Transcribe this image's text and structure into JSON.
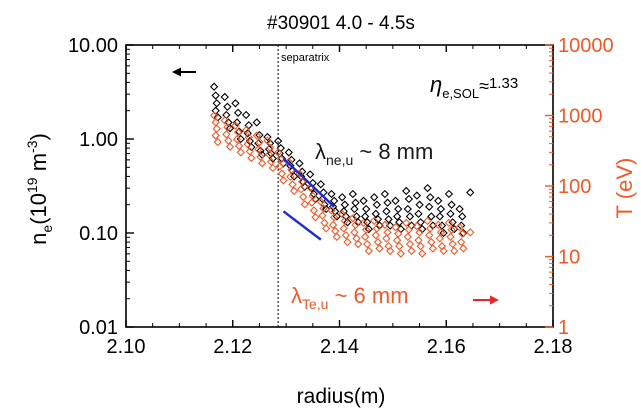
{
  "chart_data": {
    "type": "scatter",
    "title": "#30901 4.0 - 4.5s",
    "xlabel": "radius(m)",
    "ylabel_left": {
      "base": "n",
      "sub": "e",
      "unit_pre": "(10",
      "unit_sup": "19",
      "unit_mid": " m",
      "unit_sup2": "-3",
      "unit_post": ")"
    },
    "ylabel_right": "T (eV)",
    "xlim": [
      2.1,
      2.18
    ],
    "x_ticks": [
      "2.10",
      "2.12",
      "2.14",
      "2.16",
      "2.18"
    ],
    "x_tick_values": [
      2.1,
      2.12,
      2.14,
      2.16,
      2.18
    ],
    "ylim_left": [
      0.01,
      10
    ],
    "ylim_right": [
      1,
      10000
    ],
    "yscale": "log",
    "y_ticks_left": [
      "10.00",
      "1.00",
      "0.10",
      "0.01"
    ],
    "y_tick_values_left": [
      10,
      1,
      0.1,
      0.01
    ],
    "y_ticks_right": [
      "10000",
      "1000",
      "100",
      "10",
      "1"
    ],
    "y_tick_values_right": [
      10000,
      1000,
      100,
      10,
      1
    ],
    "colors": {
      "density": "#000000",
      "temperature": "#f05a28",
      "fit": "#1f2bd6"
    },
    "separatrix": {
      "x": 2.1285,
      "label": "separatrix"
    },
    "annotations": {
      "eta": {
        "symbol": "η",
        "sub": "e,SOL",
        "rel": "≈",
        "value": "1.33"
      },
      "lambda_ne": {
        "symbol": "λ",
        "sub": "ne,u",
        "text": " ~ 8 mm"
      },
      "lambda_te": {
        "symbol": "λ",
        "sub": "Te,u",
        "text": " ~ 6 mm"
      }
    },
    "fits": {
      "density": {
        "x": [
          2.1295,
          2.139
        ],
        "y": [
          0.62,
          0.19
        ]
      },
      "temperature": {
        "x": [
          2.1295,
          2.1365
        ],
        "y": [
          0.17,
          0.085
        ]
      }
    },
    "series": [
      {
        "axis": "left",
        "marker": "diamond",
        "color": "#000000",
        "points": [
          [
            2.1165,
            3.6
          ],
          [
            2.1168,
            2.9
          ],
          [
            2.117,
            2.4
          ],
          [
            2.1168,
            2.0
          ],
          [
            2.1172,
            1.7
          ],
          [
            2.1185,
            2.8
          ],
          [
            2.119,
            2.2
          ],
          [
            2.1188,
            1.8
          ],
          [
            2.1192,
            1.5
          ],
          [
            2.1195,
            1.3
          ],
          [
            2.1205,
            2.4
          ],
          [
            2.121,
            1.9
          ],
          [
            2.1208,
            1.5
          ],
          [
            2.1212,
            1.2
          ],
          [
            2.1215,
            1.0
          ],
          [
            2.1225,
            1.8
          ],
          [
            2.123,
            1.4
          ],
          [
            2.1228,
            1.15
          ],
          [
            2.1232,
            0.95
          ],
          [
            2.1235,
            0.82
          ],
          [
            2.1245,
            1.5
          ],
          [
            2.125,
            1.1
          ],
          [
            2.1248,
            0.9
          ],
          [
            2.1252,
            0.75
          ],
          [
            2.1255,
            0.68
          ],
          [
            2.1265,
            1.05
          ],
          [
            2.127,
            0.9
          ],
          [
            2.1268,
            0.78
          ],
          [
            2.1272,
            0.7
          ],
          [
            2.1275,
            0.62
          ],
          [
            2.1285,
            0.95
          ],
          [
            2.129,
            0.8
          ],
          [
            2.1288,
            0.7
          ],
          [
            2.1292,
            0.62
          ],
          [
            2.1295,
            0.55
          ],
          [
            2.1305,
            0.72
          ],
          [
            2.131,
            0.6
          ],
          [
            2.1308,
            0.52
          ],
          [
            2.1312,
            0.46
          ],
          [
            2.1315,
            0.4
          ],
          [
            2.1325,
            0.55
          ],
          [
            2.133,
            0.45
          ],
          [
            2.1328,
            0.4
          ],
          [
            2.1332,
            0.35
          ],
          [
            2.1335,
            0.31
          ],
          [
            2.1345,
            0.42
          ],
          [
            2.135,
            0.34
          ],
          [
            2.1348,
            0.3
          ],
          [
            2.1352,
            0.26
          ],
          [
            2.1355,
            0.23
          ],
          [
            2.1365,
            0.33
          ],
          [
            2.137,
            0.27
          ],
          [
            2.1368,
            0.23
          ],
          [
            2.1372,
            0.2
          ],
          [
            2.1375,
            0.18
          ],
          [
            2.1385,
            0.26
          ],
          [
            2.139,
            0.22
          ],
          [
            2.1388,
            0.19
          ],
          [
            2.1392,
            0.17
          ],
          [
            2.1395,
            0.15
          ],
          [
            2.1405,
            0.24
          ],
          [
            2.141,
            0.2
          ],
          [
            2.1408,
            0.17
          ],
          [
            2.1412,
            0.15
          ],
          [
            2.1415,
            0.13
          ],
          [
            2.1425,
            0.26
          ],
          [
            2.143,
            0.21
          ],
          [
            2.1428,
            0.18
          ],
          [
            2.1432,
            0.15
          ],
          [
            2.1435,
            0.13
          ],
          [
            2.1445,
            0.22
          ],
          [
            2.145,
            0.18
          ],
          [
            2.1448,
            0.15
          ],
          [
            2.1452,
            0.13
          ],
          [
            2.1455,
            0.11
          ],
          [
            2.1465,
            0.24
          ],
          [
            2.147,
            0.2
          ],
          [
            2.1468,
            0.16
          ],
          [
            2.1472,
            0.14
          ],
          [
            2.1475,
            0.12
          ],
          [
            2.1485,
            0.26
          ],
          [
            2.149,
            0.21
          ],
          [
            2.1488,
            0.17
          ],
          [
            2.1492,
            0.14
          ],
          [
            2.1495,
            0.12
          ],
          [
            2.1505,
            0.22
          ],
          [
            2.151,
            0.18
          ],
          [
            2.1508,
            0.15
          ],
          [
            2.1512,
            0.13
          ],
          [
            2.1515,
            0.11
          ],
          [
            2.1525,
            0.28
          ],
          [
            2.153,
            0.23
          ],
          [
            2.1528,
            0.18
          ],
          [
            2.1532,
            0.15
          ],
          [
            2.1535,
            0.12
          ],
          [
            2.1545,
            0.25
          ],
          [
            2.155,
            0.2
          ],
          [
            2.1548,
            0.16
          ],
          [
            2.1552,
            0.13
          ],
          [
            2.1555,
            0.11
          ],
          [
            2.1565,
            0.3
          ],
          [
            2.157,
            0.24
          ],
          [
            2.1568,
            0.19
          ],
          [
            2.1572,
            0.15
          ],
          [
            2.1575,
            0.12
          ],
          [
            2.1585,
            0.22
          ],
          [
            2.159,
            0.18
          ],
          [
            2.1588,
            0.15
          ],
          [
            2.1592,
            0.12
          ],
          [
            2.1595,
            0.1
          ],
          [
            2.1605,
            0.26
          ],
          [
            2.161,
            0.2
          ],
          [
            2.1608,
            0.16
          ],
          [
            2.1612,
            0.13
          ],
          [
            2.1615,
            0.11
          ],
          [
            2.1625,
            0.18
          ],
          [
            2.163,
            0.15
          ],
          [
            2.1628,
            0.12
          ],
          [
            2.1632,
            0.1
          ],
          [
            2.1645,
            0.27
          ]
        ]
      },
      {
        "axis": "right",
        "marker": "diamond",
        "color": "#f05a28",
        "points": [
          [
            2.1165,
            1000
          ],
          [
            2.1168,
            800
          ],
          [
            2.117,
            650
          ],
          [
            2.1168,
            520
          ],
          [
            2.1172,
            420
          ],
          [
            2.1185,
            850
          ],
          [
            2.119,
            680
          ],
          [
            2.1188,
            540
          ],
          [
            2.1192,
            440
          ],
          [
            2.1195,
            360
          ],
          [
            2.1205,
            720
          ],
          [
            2.121,
            580
          ],
          [
            2.1208,
            460
          ],
          [
            2.1212,
            370
          ],
          [
            2.1215,
            300
          ],
          [
            2.1225,
            620
          ],
          [
            2.123,
            490
          ],
          [
            2.1228,
            390
          ],
          [
            2.1232,
            310
          ],
          [
            2.1235,
            250
          ],
          [
            2.1245,
            520
          ],
          [
            2.125,
            420
          ],
          [
            2.1248,
            330
          ],
          [
            2.1252,
            260
          ],
          [
            2.1255,
            210
          ],
          [
            2.1265,
            440
          ],
          [
            2.127,
            350
          ],
          [
            2.1268,
            280
          ],
          [
            2.1272,
            220
          ],
          [
            2.1275,
            180
          ],
          [
            2.1285,
            300
          ],
          [
            2.129,
            240
          ],
          [
            2.1288,
            190
          ],
          [
            2.1292,
            150
          ],
          [
            2.1295,
            120
          ],
          [
            2.1305,
            220
          ],
          [
            2.131,
            170
          ],
          [
            2.1308,
            135
          ],
          [
            2.1312,
            105
          ],
          [
            2.1315,
            85
          ],
          [
            2.1325,
            150
          ],
          [
            2.133,
            115
          ],
          [
            2.1328,
            90
          ],
          [
            2.1332,
            70
          ],
          [
            2.1335,
            55
          ],
          [
            2.1345,
            95
          ],
          [
            2.135,
            72
          ],
          [
            2.1348,
            58
          ],
          [
            2.1352,
            45
          ],
          [
            2.1355,
            36
          ],
          [
            2.1365,
            60
          ],
          [
            2.137,
            48
          ],
          [
            2.1368,
            38
          ],
          [
            2.1372,
            30
          ],
          [
            2.1375,
            25
          ],
          [
            2.1385,
            45
          ],
          [
            2.139,
            36
          ],
          [
            2.1388,
            28
          ],
          [
            2.1392,
            23
          ],
          [
            2.1395,
            19
          ],
          [
            2.1405,
            40
          ],
          [
            2.141,
            32
          ],
          [
            2.1408,
            25
          ],
          [
            2.1412,
            20
          ],
          [
            2.1415,
            16
          ],
          [
            2.1425,
            35
          ],
          [
            2.143,
            28
          ],
          [
            2.1428,
            22
          ],
          [
            2.1432,
            18
          ],
          [
            2.1435,
            15
          ],
          [
            2.1445,
            30
          ],
          [
            2.145,
            24
          ],
          [
            2.1448,
            19
          ],
          [
            2.1452,
            15
          ],
          [
            2.1455,
            12
          ],
          [
            2.1465,
            32
          ],
          [
            2.147,
            25
          ],
          [
            2.1468,
            20
          ],
          [
            2.1472,
            16
          ],
          [
            2.1475,
            13
          ],
          [
            2.1485,
            28
          ],
          [
            2.149,
            22
          ],
          [
            2.1488,
            18
          ],
          [
            2.1492,
            14
          ],
          [
            2.1495,
            12
          ],
          [
            2.1505,
            26
          ],
          [
            2.151,
            21
          ],
          [
            2.1508,
            17
          ],
          [
            2.1512,
            14
          ],
          [
            2.1515,
            11
          ],
          [
            2.1525,
            30
          ],
          [
            2.153,
            24
          ],
          [
            2.1528,
            19
          ],
          [
            2.1532,
            15
          ],
          [
            2.1535,
            12
          ],
          [
            2.1545,
            27
          ],
          [
            2.155,
            22
          ],
          [
            2.1548,
            17
          ],
          [
            2.1552,
            14
          ],
          [
            2.1555,
            11
          ],
          [
            2.1565,
            32
          ],
          [
            2.157,
            25
          ],
          [
            2.1568,
            20
          ],
          [
            2.1572,
            16
          ],
          [
            2.1575,
            13
          ],
          [
            2.1585,
            28
          ],
          [
            2.159,
            22
          ],
          [
            2.1588,
            18
          ],
          [
            2.1592,
            14
          ],
          [
            2.1595,
            12
          ],
          [
            2.1605,
            30
          ],
          [
            2.161,
            24
          ],
          [
            2.1608,
            19
          ],
          [
            2.1612,
            15
          ],
          [
            2.1615,
            12
          ],
          [
            2.1625,
            26
          ],
          [
            2.163,
            21
          ],
          [
            2.1628,
            16
          ],
          [
            2.1632,
            13
          ],
          [
            2.1645,
            22
          ]
        ]
      }
    ]
  }
}
